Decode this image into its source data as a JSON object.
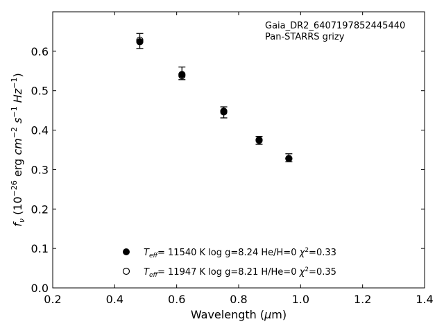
{
  "chart_data": {
    "type": "scatter",
    "annotation": {
      "line1": "Gaia_DR2_6407197852445440",
      "line2": "Pan-STARRS grizy"
    },
    "xlabel": "Wavelength (μm)",
    "ylabel": "f_ν (10^-26 erg cm^-2 s^-1 Hz^-1)",
    "xlim": [
      0.2,
      1.4
    ],
    "ylim": [
      0.0,
      0.7
    ],
    "xticks": [
      "0.2",
      "0.4",
      "0.6",
      "0.8",
      "1.0",
      "1.2",
      "1.4"
    ],
    "yticks": [
      "0.0",
      "0.1",
      "0.2",
      "0.3",
      "0.4",
      "0.5",
      "0.6"
    ],
    "observed": {
      "x": [
        0.481,
        0.617,
        0.752,
        0.866,
        0.962
      ],
      "y": [
        0.626,
        0.544,
        0.445,
        0.374,
        0.33
      ],
      "yerr": [
        0.019,
        0.016,
        0.014,
        0.01,
        0.01
      ]
    },
    "series": [
      {
        "name": "T_eff= 11540 K  log g=8.24  He/H=0  χ²=0.33",
        "marker": "filled",
        "x": [
          0.481,
          0.617,
          0.752,
          0.866,
          0.962
        ],
        "y": [
          0.624,
          0.541,
          0.448,
          0.375,
          0.328
        ]
      },
      {
        "name": "T_eff= 11947 K  log g=8.21  H/He=0  χ²=0.35",
        "marker": "open",
        "x": [
          0.481,
          0.617,
          0.752,
          0.866,
          0.962
        ],
        "y": [
          0.628,
          0.538,
          0.446,
          0.374,
          0.328
        ]
      }
    ],
    "legend": {
      "placement": "lower-center",
      "entries": [
        {
          "teff": "11540",
          "logg": "8.24",
          "comp": "He/H=0",
          "chi2": "0.33"
        },
        {
          "teff": "11947",
          "logg": "8.21",
          "comp": "H/He=0",
          "chi2": "0.35"
        }
      ]
    },
    "grid": false,
    "colors": {
      "marker": "#000000",
      "axis": "#000000"
    }
  }
}
